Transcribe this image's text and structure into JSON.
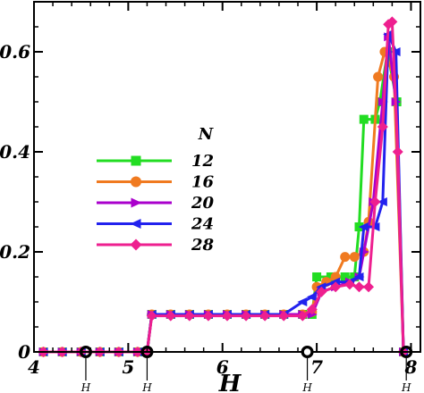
{
  "chart_data": {
    "type": "line",
    "xlabel": "H",
    "ylabel": "",
    "xlim": [
      4,
      8.1
    ],
    "ylim": [
      0,
      0.7
    ],
    "xticks": [
      "4",
      "5",
      "6",
      "7",
      "8"
    ],
    "yticks": [
      "0",
      "0.2",
      "0.4",
      "0.6"
    ],
    "legend": {
      "title": "N",
      "placement": "center-left"
    },
    "grid": false,
    "series": [
      {
        "name": "12",
        "color": "#22dd22",
        "marker": "square",
        "points": [
          [
            4.1,
            0
          ],
          [
            4.3,
            0
          ],
          [
            4.5,
            0
          ],
          [
            4.7,
            0
          ],
          [
            4.9,
            0
          ],
          [
            5.1,
            0
          ],
          [
            5.2,
            0
          ],
          [
            5.25,
            0.075
          ],
          [
            5.45,
            0.075
          ],
          [
            5.65,
            0.075
          ],
          [
            5.85,
            0.075
          ],
          [
            6.05,
            0.075
          ],
          [
            6.25,
            0.075
          ],
          [
            6.45,
            0.075
          ],
          [
            6.65,
            0.075
          ],
          [
            6.85,
            0.075
          ],
          [
            6.95,
            0.075
          ],
          [
            7.0,
            0.15
          ],
          [
            7.15,
            0.15
          ],
          [
            7.3,
            0.15
          ],
          [
            7.4,
            0.15
          ],
          [
            7.45,
            0.25
          ],
          [
            7.5,
            0.465
          ],
          [
            7.62,
            0.465
          ],
          [
            7.67,
            0.5
          ],
          [
            7.75,
            0.6
          ],
          [
            7.85,
            0.5
          ],
          [
            7.92,
            0
          ]
        ]
      },
      {
        "name": "16",
        "color": "#f07a20",
        "marker": "circle",
        "points": [
          [
            4.1,
            0
          ],
          [
            4.3,
            0
          ],
          [
            4.5,
            0
          ],
          [
            4.7,
            0
          ],
          [
            4.9,
            0
          ],
          [
            5.1,
            0
          ],
          [
            5.2,
            0
          ],
          [
            5.25,
            0.075
          ],
          [
            5.45,
            0.075
          ],
          [
            5.65,
            0.075
          ],
          [
            5.85,
            0.075
          ],
          [
            6.05,
            0.075
          ],
          [
            6.25,
            0.075
          ],
          [
            6.45,
            0.075
          ],
          [
            6.65,
            0.075
          ],
          [
            6.85,
            0.075
          ],
          [
            6.95,
            0.08
          ],
          [
            7.0,
            0.13
          ],
          [
            7.1,
            0.14
          ],
          [
            7.2,
            0.15
          ],
          [
            7.3,
            0.19
          ],
          [
            7.4,
            0.19
          ],
          [
            7.5,
            0.2
          ],
          [
            7.55,
            0.26
          ],
          [
            7.65,
            0.55
          ],
          [
            7.72,
            0.6
          ],
          [
            7.82,
            0.55
          ],
          [
            7.92,
            0
          ]
        ]
      },
      {
        "name": "20",
        "color": "#aa00cc",
        "marker": "triangle-right",
        "points": [
          [
            4.1,
            0
          ],
          [
            4.3,
            0
          ],
          [
            4.5,
            0
          ],
          [
            4.7,
            0
          ],
          [
            4.9,
            0
          ],
          [
            5.1,
            0
          ],
          [
            5.2,
            0
          ],
          [
            5.25,
            0.075
          ],
          [
            5.45,
            0.075
          ],
          [
            5.65,
            0.075
          ],
          [
            5.85,
            0.075
          ],
          [
            6.05,
            0.075
          ],
          [
            6.25,
            0.075
          ],
          [
            6.45,
            0.075
          ],
          [
            6.65,
            0.075
          ],
          [
            6.85,
            0.075
          ],
          [
            6.95,
            0.075
          ],
          [
            7.05,
            0.12
          ],
          [
            7.2,
            0.13
          ],
          [
            7.35,
            0.14
          ],
          [
            7.45,
            0.15
          ],
          [
            7.5,
            0.2
          ],
          [
            7.6,
            0.3
          ],
          [
            7.7,
            0.5
          ],
          [
            7.76,
            0.63
          ],
          [
            7.84,
            0.5
          ],
          [
            7.92,
            0
          ]
        ]
      },
      {
        "name": "24",
        "color": "#2222ee",
        "marker": "triangle-left",
        "points": [
          [
            4.1,
            0
          ],
          [
            4.3,
            0
          ],
          [
            4.5,
            0
          ],
          [
            4.7,
            0
          ],
          [
            4.9,
            0
          ],
          [
            5.1,
            0
          ],
          [
            5.2,
            0
          ],
          [
            5.25,
            0.075
          ],
          [
            5.45,
            0.075
          ],
          [
            5.65,
            0.075
          ],
          [
            5.85,
            0.075
          ],
          [
            6.05,
            0.075
          ],
          [
            6.25,
            0.075
          ],
          [
            6.45,
            0.075
          ],
          [
            6.65,
            0.075
          ],
          [
            6.85,
            0.1
          ],
          [
            6.95,
            0.11
          ],
          [
            7.05,
            0.13
          ],
          [
            7.2,
            0.14
          ],
          [
            7.35,
            0.14
          ],
          [
            7.45,
            0.15
          ],
          [
            7.5,
            0.25
          ],
          [
            7.62,
            0.25
          ],
          [
            7.7,
            0.3
          ],
          [
            7.76,
            0.635
          ],
          [
            7.84,
            0.6
          ],
          [
            7.92,
            0
          ]
        ]
      },
      {
        "name": "28",
        "color": "#ee1f8f",
        "marker": "diamond",
        "points": [
          [
            4.1,
            0
          ],
          [
            4.3,
            0
          ],
          [
            4.5,
            0
          ],
          [
            4.7,
            0
          ],
          [
            4.9,
            0
          ],
          [
            5.1,
            0
          ],
          [
            5.2,
            0
          ],
          [
            5.25,
            0.072
          ],
          [
            5.45,
            0.072
          ],
          [
            5.65,
            0.072
          ],
          [
            5.85,
            0.072
          ],
          [
            6.05,
            0.072
          ],
          [
            6.25,
            0.072
          ],
          [
            6.45,
            0.072
          ],
          [
            6.65,
            0.072
          ],
          [
            6.85,
            0.072
          ],
          [
            6.95,
            0.085
          ],
          [
            7.05,
            0.12
          ],
          [
            7.2,
            0.13
          ],
          [
            7.35,
            0.135
          ],
          [
            7.45,
            0.13
          ],
          [
            7.55,
            0.13
          ],
          [
            7.62,
            0.3
          ],
          [
            7.7,
            0.45
          ],
          [
            7.76,
            0.655
          ],
          [
            7.8,
            0.66
          ],
          [
            7.86,
            0.4
          ],
          [
            7.92,
            0
          ]
        ]
      }
    ],
    "markers": [
      {
        "x": 4.55,
        "label": "H",
        "filled": true
      },
      {
        "x": 5.2,
        "label": "H",
        "filled": true
      },
      {
        "x": 6.9,
        "label": "H",
        "filled": false
      },
      {
        "x": 7.95,
        "label": "H",
        "filled": true
      }
    ]
  }
}
